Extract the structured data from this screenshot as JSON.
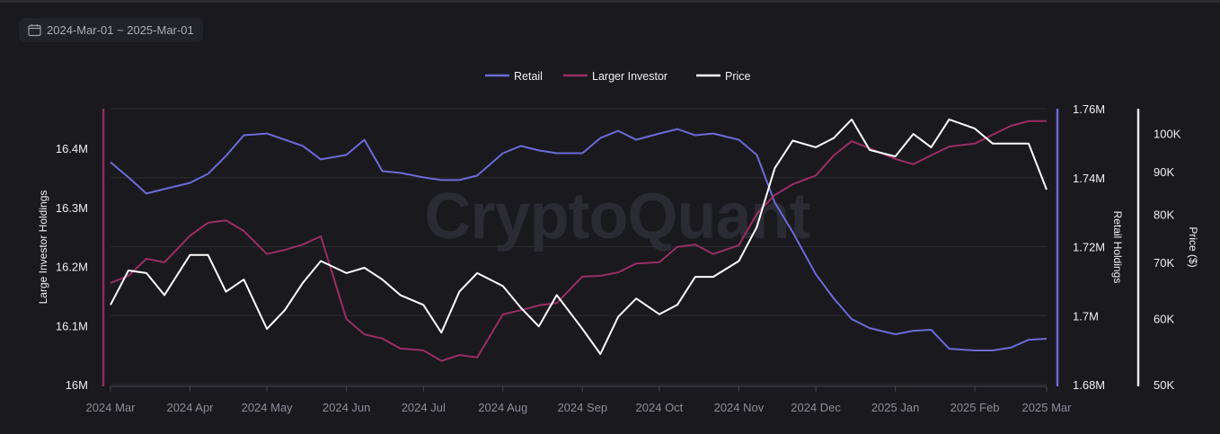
{
  "date_range": {
    "label": "2024-Mar-01 ~ 2025-Mar-01",
    "icon": "calendar-icon"
  },
  "watermark": "CryptoQuant",
  "chart_data": {
    "type": "line",
    "legend_position": "top",
    "grid": true,
    "x": [
      "2024-03-01",
      "2024-03-08",
      "2024-03-15",
      "2024-03-22",
      "2024-04-01",
      "2024-04-08",
      "2024-04-15",
      "2024-04-22",
      "2024-05-01",
      "2024-05-08",
      "2024-05-15",
      "2024-05-22",
      "2024-06-01",
      "2024-06-08",
      "2024-06-15",
      "2024-06-22",
      "2024-07-01",
      "2024-07-08",
      "2024-07-15",
      "2024-07-22",
      "2024-08-01",
      "2024-08-08",
      "2024-08-15",
      "2024-08-22",
      "2024-09-01",
      "2024-09-08",
      "2024-09-15",
      "2024-09-22",
      "2024-10-01",
      "2024-10-08",
      "2024-10-15",
      "2024-10-22",
      "2024-11-01",
      "2024-11-08",
      "2024-11-15",
      "2024-11-22",
      "2024-12-01",
      "2024-12-08",
      "2024-12-15",
      "2024-12-22",
      "2025-01-01",
      "2025-01-08",
      "2025-01-15",
      "2025-01-22",
      "2025-02-01",
      "2025-02-08",
      "2025-02-15",
      "2025-02-22",
      "2025-03-01"
    ],
    "xlim": [
      "2024-03-01",
      "2025-03-01"
    ],
    "x_ticks": [
      {
        "date": "2024-03-01",
        "label": "2024 Mar"
      },
      {
        "date": "2024-04-01",
        "label": "2024 Apr"
      },
      {
        "date": "2024-05-01",
        "label": "2024 May"
      },
      {
        "date": "2024-06-01",
        "label": "2024 Jun"
      },
      {
        "date": "2024-07-01",
        "label": "2024 Jul"
      },
      {
        "date": "2024-08-01",
        "label": "2024 Aug"
      },
      {
        "date": "2024-09-01",
        "label": "2024 Sep"
      },
      {
        "date": "2024-10-01",
        "label": "2024 Oct"
      },
      {
        "date": "2024-11-01",
        "label": "2024 Nov"
      },
      {
        "date": "2024-12-01",
        "label": "2024 Dec"
      },
      {
        "date": "2025-01-01",
        "label": "2025 Jan"
      },
      {
        "date": "2025-02-01",
        "label": "2025 Feb"
      },
      {
        "date": "2025-03-01",
        "label": "2025 Mar"
      }
    ],
    "axes": {
      "left": {
        "label": "Large Investor Holdings",
        "unit": "M",
        "ylim": [
          16.0,
          16.467
        ],
        "ticks": [
          {
            "v": 16.0,
            "label": "16M"
          },
          {
            "v": 16.1,
            "label": "16.1M"
          },
          {
            "v": 16.2,
            "label": "16.2M"
          },
          {
            "v": 16.3,
            "label": "16.3M"
          },
          {
            "v": 16.4,
            "label": "16.4M"
          }
        ],
        "color": "#8e2b5d"
      },
      "retail": {
        "label": "Retail Holdings",
        "unit": "M",
        "ylim": [
          1.68,
          1.76
        ],
        "ticks": [
          {
            "v": 1.68,
            "label": "1.68M"
          },
          {
            "v": 1.7,
            "label": "1.7M"
          },
          {
            "v": 1.72,
            "label": "1.72M"
          },
          {
            "v": 1.74,
            "label": "1.74M"
          },
          {
            "v": 1.76,
            "label": "1.76M"
          }
        ],
        "color": "#6b6bd8"
      },
      "price": {
        "label": "Price ($)",
        "scale": "log",
        "ylim": [
          50000,
          107000
        ],
        "ticks": [
          {
            "v": 50000,
            "label": "50K"
          },
          {
            "v": 60000,
            "label": "60K"
          },
          {
            "v": 70000,
            "label": "70K"
          },
          {
            "v": 80000,
            "label": "80K"
          },
          {
            "v": 90000,
            "label": "90K"
          },
          {
            "v": 100000,
            "label": "100K"
          }
        ],
        "color": "#e8e8ec"
      }
    },
    "series": [
      {
        "name": "Retail",
        "axis": "retail",
        "color": "#6b6bd8",
        "values": [
          1.7445,
          1.7401,
          1.7354,
          1.7367,
          1.7385,
          1.7411,
          1.7463,
          1.7523,
          1.7528,
          1.751,
          1.7492,
          1.7453,
          1.7466,
          1.751,
          1.7419,
          1.7414,
          1.7401,
          1.7393,
          1.7393,
          1.7406,
          1.7471,
          1.7492,
          1.7479,
          1.7471,
          1.7471,
          1.7515,
          1.7536,
          1.751,
          1.7528,
          1.7541,
          1.7523,
          1.7528,
          1.751,
          1.7466,
          1.7328,
          1.7242,
          1.712,
          1.705,
          1.699,
          1.6964,
          1.6946,
          1.6956,
          1.6959,
          1.6904,
          1.6899,
          1.6899,
          1.6907,
          1.693,
          1.6933
        ]
      },
      {
        "name": "Larger Investor",
        "axis": "left",
        "color": "#9a2e64",
        "values": [
          16.172,
          16.184,
          16.213,
          16.207,
          16.252,
          16.274,
          16.278,
          16.26,
          16.221,
          16.228,
          16.237,
          16.251,
          16.111,
          16.085,
          16.078,
          16.061,
          16.058,
          16.04,
          16.05,
          16.046,
          16.119,
          16.126,
          16.134,
          16.138,
          16.183,
          16.184,
          16.19,
          16.205,
          16.207,
          16.233,
          16.237,
          16.221,
          16.236,
          16.289,
          16.321,
          16.339,
          16.354,
          16.388,
          16.412,
          16.4,
          16.382,
          16.373,
          16.388,
          16.403,
          16.408,
          16.423,
          16.438,
          16.446,
          16.446
        ]
      },
      {
        "name": "Price",
        "axis": "price",
        "color": "#ffffff",
        "values": [
          62300,
          68500,
          68000,
          64000,
          71500,
          71500,
          64600,
          66800,
          58300,
          61400,
          66200,
          70300,
          68000,
          69000,
          66800,
          64000,
          62300,
          57700,
          64600,
          68000,
          65600,
          61800,
          58700,
          64000,
          58300,
          54400,
          60300,
          63400,
          60700,
          62300,
          67300,
          67300,
          70300,
          77200,
          90800,
          98000,
          96200,
          98700,
          103900,
          95500,
          93800,
          99800,
          96200,
          103900,
          101300,
          97200,
          97200,
          97200,
          85600
        ]
      }
    ]
  }
}
